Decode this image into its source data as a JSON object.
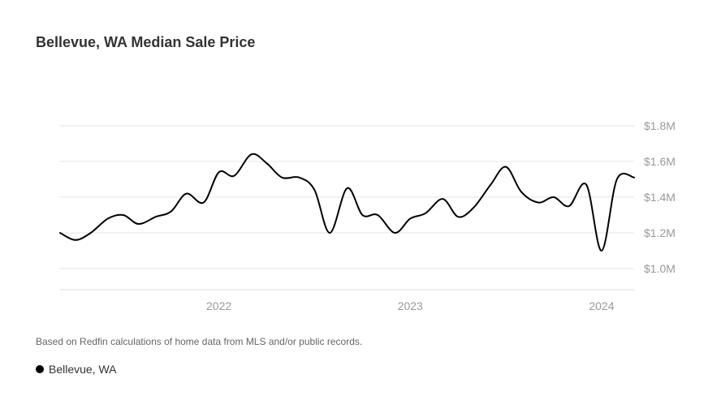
{
  "chart_data": {
    "type": "line",
    "title": "Bellevue, WA Median Sale Price",
    "y_ticks": [
      "$1.8M",
      "$1.6M",
      "$1.4M",
      "$1.2M",
      "$1.0M"
    ],
    "y_tick_values": [
      1.8,
      1.6,
      1.4,
      1.2,
      1.0
    ],
    "x_ticks": [
      "2022",
      "2023",
      "2024"
    ],
    "x_tick_values": [
      2022.0,
      2023.0,
      2024.0
    ],
    "xlim": [
      2021.17,
      2024.17
    ],
    "ylim": [
      0.88,
      1.86
    ],
    "grid": true,
    "series": [
      {
        "name": "Bellevue, WA",
        "color": "#000000",
        "x": [
          2021.17,
          2021.25,
          2021.33,
          2021.42,
          2021.5,
          2021.58,
          2021.67,
          2021.75,
          2021.83,
          2021.92,
          2022.0,
          2022.08,
          2022.17,
          2022.25,
          2022.33,
          2022.42,
          2022.5,
          2022.58,
          2022.67,
          2022.75,
          2022.83,
          2022.92,
          2023.0,
          2023.08,
          2023.17,
          2023.25,
          2023.33,
          2023.42,
          2023.5,
          2023.58,
          2023.67,
          2023.75,
          2023.83,
          2023.92,
          2024.0,
          2024.08,
          2024.17
        ],
        "values": [
          1.2,
          1.16,
          1.2,
          1.28,
          1.3,
          1.25,
          1.29,
          1.32,
          1.42,
          1.37,
          1.54,
          1.52,
          1.64,
          1.59,
          1.51,
          1.51,
          1.44,
          1.2,
          1.45,
          1.3,
          1.3,
          1.2,
          1.28,
          1.31,
          1.39,
          1.29,
          1.34,
          1.47,
          1.57,
          1.43,
          1.37,
          1.4,
          1.35,
          1.47,
          1.1,
          1.5,
          1.51
        ]
      }
    ]
  },
  "footnote": "Based on Redfin calculations of home data from MLS and/or public records.",
  "legend": {
    "label": "Bellevue, WA"
  }
}
